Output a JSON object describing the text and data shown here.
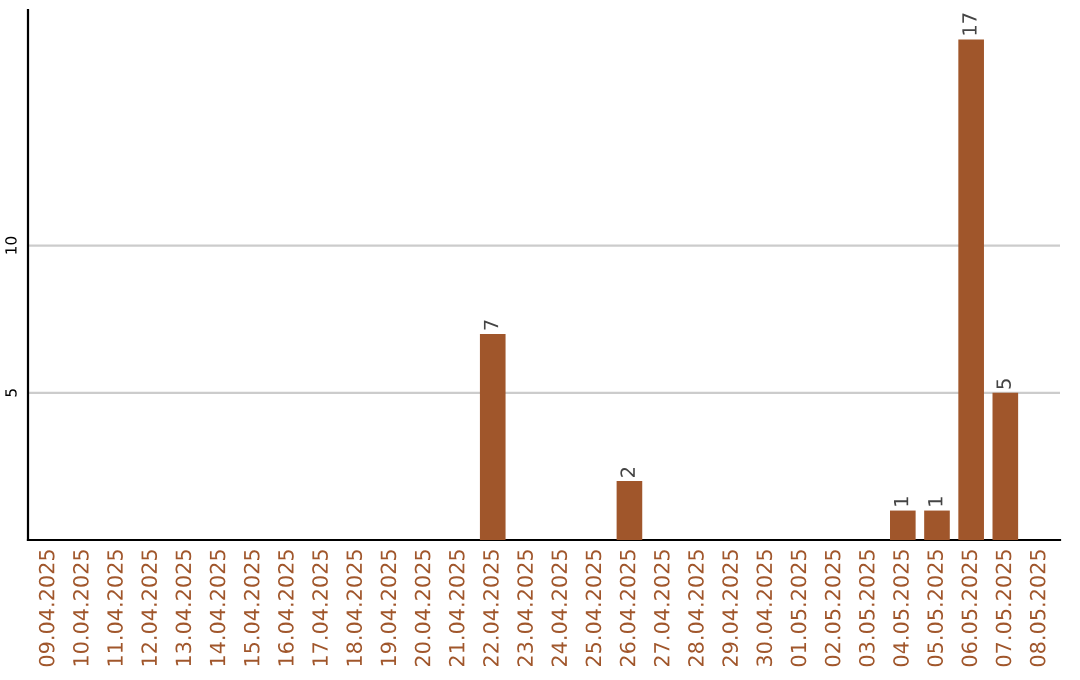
{
  "chart_data": {
    "type": "bar",
    "categories": [
      "09.04.2025",
      "10.04.2025",
      "11.04.2025",
      "12.04.2025",
      "13.04.2025",
      "14.04.2025",
      "15.04.2025",
      "16.04.2025",
      "17.04.2025",
      "18.04.2025",
      "19.04.2025",
      "20.04.2025",
      "21.04.2025",
      "22.04.2025",
      "23.04.2025",
      "24.04.2025",
      "25.04.2025",
      "26.04.2025",
      "27.04.2025",
      "28.04.2025",
      "29.04.2025",
      "30.04.2025",
      "01.05.2025",
      "02.05.2025",
      "03.05.2025",
      "04.05.2025",
      "05.05.2025",
      "06.05.2025",
      "07.05.2025",
      "08.05.2025"
    ],
    "values": [
      0,
      0,
      0,
      0,
      0,
      0,
      0,
      0,
      0,
      0,
      0,
      0,
      0,
      7,
      0,
      0,
      0,
      2,
      0,
      0,
      0,
      0,
      0,
      0,
      0,
      1,
      1,
      17,
      5,
      0
    ],
    "value_labels": [
      null,
      null,
      null,
      null,
      null,
      null,
      null,
      null,
      null,
      null,
      null,
      null,
      null,
      "7",
      null,
      null,
      null,
      "2",
      null,
      null,
      null,
      null,
      null,
      null,
      null,
      "1",
      "1",
      "17",
      "5",
      null
    ],
    "color": "#a0562b",
    "ylim": [
      0,
      18
    ],
    "yticks": [
      5,
      10
    ],
    "grid": "y"
  }
}
